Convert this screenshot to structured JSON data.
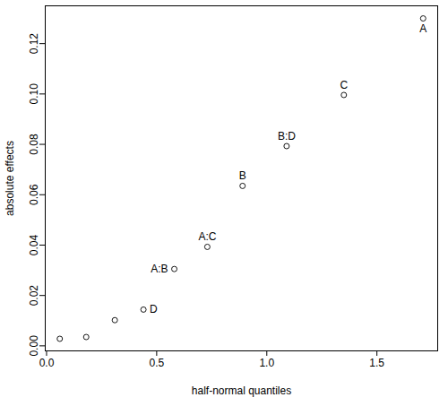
{
  "chart_data": {
    "type": "scatter",
    "x_label": "half-normal quantiles",
    "y_label": "absolute effects",
    "x": [
      0.06,
      0.18,
      0.31,
      0.44,
      0.58,
      0.73,
      0.89,
      1.09,
      1.35,
      1.71
    ],
    "values": [
      0.0028,
      0.0035,
      0.0102,
      0.0144,
      0.0305,
      0.0393,
      0.0635,
      0.0793,
      0.0996,
      0.13
    ],
    "labels": [
      null,
      null,
      null,
      "D",
      "A:B",
      "A:C",
      "B",
      "B:D",
      "C",
      "A"
    ],
    "color": "#000000",
    "marker": "open_circle",
    "xlim": [
      -0.006,
      1.776
    ],
    "ylim": [
      -0.002,
      0.135
    ],
    "xticks": [
      {
        "value": 0,
        "label": "0.0"
      },
      {
        "value": 0.5,
        "label": "0.5"
      },
      {
        "value": 1,
        "label": "1.0"
      },
      {
        "value": 1.5,
        "label": "1.5"
      }
    ],
    "yticks": [
      {
        "value": 0,
        "label": "0.00"
      },
      {
        "value": 0.02,
        "label": "0.02"
      },
      {
        "value": 0.04,
        "label": "0.04"
      },
      {
        "value": 0.06,
        "label": "0.06"
      },
      {
        "value": 0.08,
        "label": "0.08"
      },
      {
        "value": 0.1,
        "label": "0.10"
      },
      {
        "value": 0.12,
        "label": "0.12"
      }
    ],
    "grid": false
  }
}
